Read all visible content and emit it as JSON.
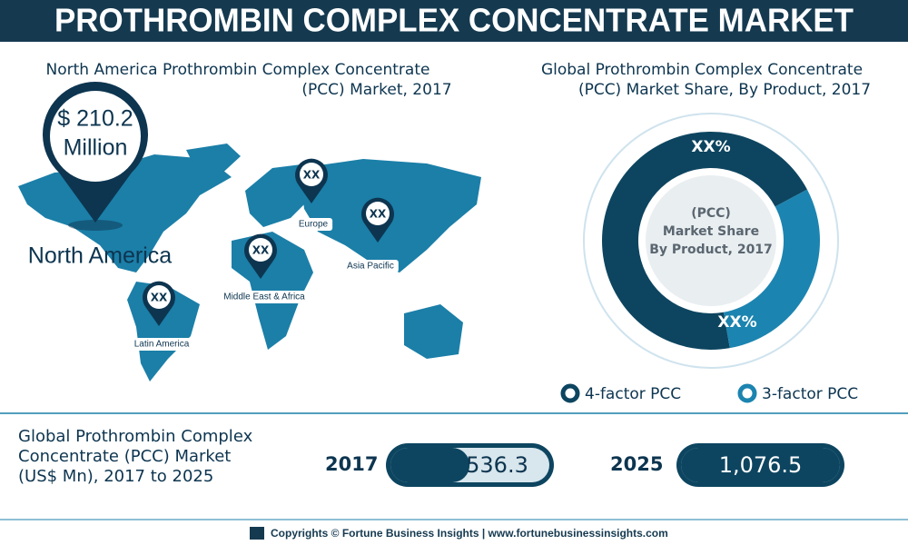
{
  "header": {
    "title": "PROTHROMBIN COMPLEX CONCENTRATE MARKET"
  },
  "map": {
    "title_lines": [
      "North America Prothrombin Complex Concentrate",
      "(PCC) Market, 2017"
    ],
    "highlight": {
      "value_label": "$ 210.2",
      "unit": "Million",
      "region": "North America"
    },
    "regions": [
      {
        "name": "Europe",
        "label": "XX"
      },
      {
        "name": "Asia Pacific",
        "label": "XX"
      },
      {
        "name": "Middle East & Africa",
        "label": "XX"
      },
      {
        "name": "Latin America",
        "label": "XX"
      }
    ]
  },
  "share_chart": {
    "type": "donut",
    "title_lines": [
      "Global Prothrombin Complex Concentrate",
      "(PCC) Market Share, By Product, 2017"
    ],
    "center_lines": [
      "(PCC)",
      "Market Share",
      "By Product, 2017"
    ],
    "segments": [
      {
        "name": "4-factor PCC",
        "label": "XX%",
        "share": 70,
        "color": "#0d4560"
      },
      {
        "name": "3-factor PCC",
        "label": "XX%",
        "share": 30,
        "color": "#1c84b0"
      }
    ]
  },
  "market": {
    "title_lines": [
      "Global Prothrombin Complex",
      "Concentrate (PCC) Market",
      "(US$ Mn),  2017 to 2025"
    ],
    "years": [
      "2017",
      "2025"
    ],
    "values": [
      536.3,
      1076.5
    ],
    "value_labels": [
      "536.3",
      "1,076.5"
    ]
  },
  "footer": {
    "text": "Copyrights © Fortune Business Insights | www.fortunebusinessinsights.com"
  }
}
